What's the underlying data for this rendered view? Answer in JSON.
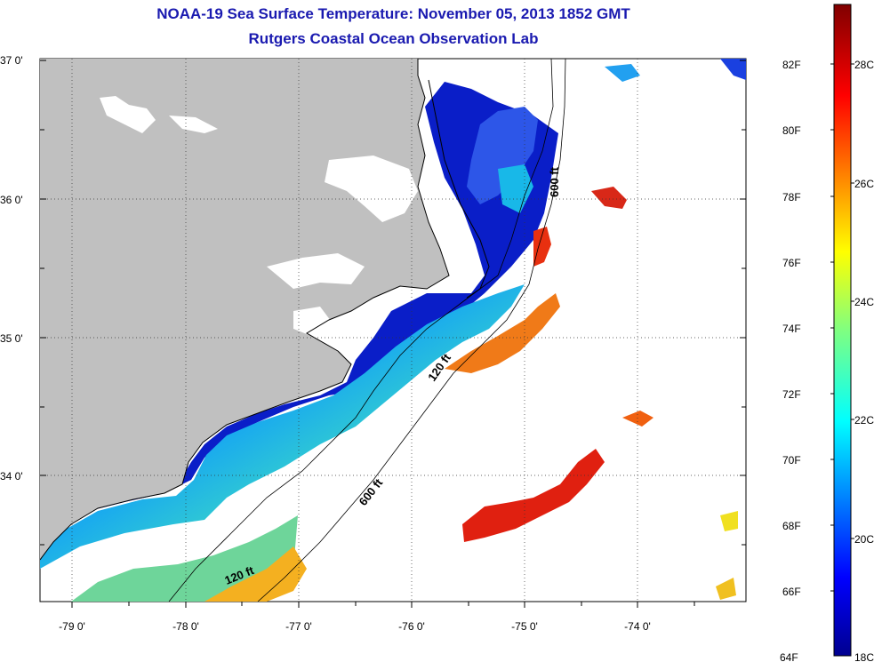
{
  "header": {
    "title": "NOAA-19 Sea Surface Temperature:  November 05, 2013 1852 GMT",
    "subtitle": "Rutgers Coastal Ocean Observation Lab"
  },
  "axes": {
    "lat_labels": [
      "37 0'",
      "36 0'",
      "35 0'",
      "34 0'"
    ],
    "lon_labels": [
      "-79 0'",
      "-78 0'",
      "-77 0'",
      "-76 0'",
      "-75 0'",
      "-74 0'"
    ]
  },
  "isobaths": {
    "label_600_east": "600 ft",
    "label_120_mid": "120 ft",
    "label_600_south": "600 ft",
    "label_120_south": "120 ft"
  },
  "colorbar": {
    "fahrenheit": [
      "82F",
      "80F",
      "78F",
      "76F",
      "74F",
      "72F",
      "70F",
      "68F",
      "66F",
      "64F"
    ],
    "celsius": [
      "28C",
      "26C",
      "24C",
      "22C",
      "20C",
      "18C"
    ]
  },
  "colors": {
    "land": "#c0c0c0",
    "title": "#1a1ab0",
    "cold": "#00008f",
    "warm": "#800000"
  }
}
